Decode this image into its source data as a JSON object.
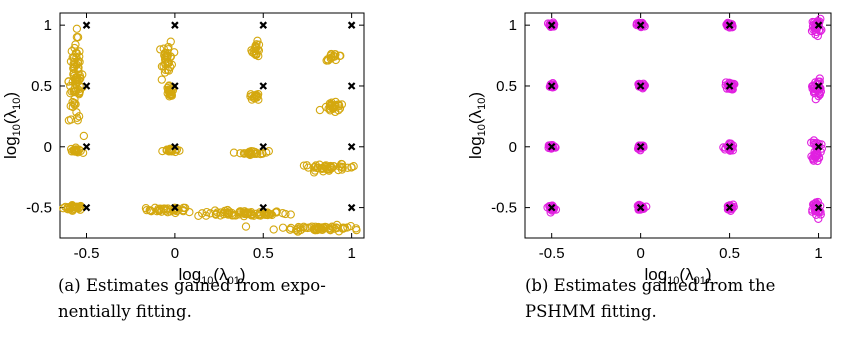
{
  "chart_data": [
    {
      "type": "scatter",
      "panel_caption": [
        "(a) Estimates gained from expo-",
        "nentially fitting."
      ],
      "xlabel": {
        "base": "log",
        "base_sub": "10",
        "arg": "(λ",
        "arg_sub": "01",
        "close": ")"
      },
      "ylabel": {
        "base": "log",
        "base_sub": "10",
        "arg": "(λ",
        "arg_sub": "10",
        "close": ")"
      },
      "xlim": [
        -0.65,
        1.07
      ],
      "ylim": [
        -0.75,
        1.1
      ],
      "xticks": [
        -0.5,
        0,
        0.5,
        1
      ],
      "xtick_labels": [
        "-0.5",
        "0",
        "0.5",
        "1"
      ],
      "yticks": [
        -0.5,
        0,
        0.5,
        1
      ],
      "ytick_labels": [
        "-0.5",
        "0",
        "0.5",
        "1"
      ],
      "grid": false,
      "series": [
        {
          "role": "true-values",
          "marker": "x",
          "color": "#000000",
          "points": [
            [
              -0.5,
              -0.5
            ],
            [
              0,
              -0.5
            ],
            [
              0.5,
              -0.5
            ],
            [
              1,
              -0.5
            ],
            [
              -0.5,
              0
            ],
            [
              0,
              0
            ],
            [
              0.5,
              0
            ],
            [
              1,
              0
            ],
            [
              -0.5,
              0.5
            ],
            [
              0,
              0.5
            ],
            [
              0.5,
              0.5
            ],
            [
              1,
              0.5
            ],
            [
              -0.5,
              1
            ],
            [
              0,
              1
            ],
            [
              0.5,
              1
            ],
            [
              1,
              1
            ]
          ]
        },
        {
          "role": "estimates",
          "marker": "open-circle",
          "color": "#d4a80f",
          "clusters": [
            {
              "cx": -0.57,
              "cy": -0.5,
              "sx": 0.03,
              "sy": 0.01,
              "n": 30
            },
            {
              "cx": -0.04,
              "cy": -0.52,
              "sx": 0.06,
              "sy": 0.012,
              "n": 35
            },
            {
              "cx": 0.38,
              "cy": -0.55,
              "sx": 0.13,
              "sy": 0.012,
              "n": 70
            },
            {
              "cx": 0.82,
              "cy": -0.67,
              "sx": 0.12,
              "sy": 0.012,
              "n": 60
            },
            {
              "cx": -0.56,
              "cy": -0.03,
              "sx": 0.015,
              "sy": 0.01,
              "n": 20
            },
            {
              "cx": -0.03,
              "cy": -0.03,
              "sx": 0.02,
              "sy": 0.008,
              "n": 20
            },
            {
              "cx": 0.45,
              "cy": -0.05,
              "sx": 0.04,
              "sy": 0.008,
              "n": 25
            },
            {
              "cx": 0.87,
              "cy": -0.17,
              "sx": 0.08,
              "sy": 0.012,
              "n": 40
            },
            {
              "cx": -0.56,
              "cy": 0.55,
              "sx": 0.02,
              "sy": 0.18,
              "n": 80
            },
            {
              "cx": -0.03,
              "cy": 0.44,
              "sx": 0.012,
              "sy": 0.03,
              "n": 20
            },
            {
              "cx": 0.45,
              "cy": 0.41,
              "sx": 0.015,
              "sy": 0.015,
              "n": 15
            },
            {
              "cx": 0.9,
              "cy": 0.32,
              "sx": 0.03,
              "sy": 0.02,
              "n": 25
            },
            {
              "cx": -0.04,
              "cy": 0.73,
              "sx": 0.015,
              "sy": 0.07,
              "n": 35
            },
            {
              "cx": 0.46,
              "cy": 0.8,
              "sx": 0.012,
              "sy": 0.03,
              "n": 20
            },
            {
              "cx": 0.9,
              "cy": 0.74,
              "sx": 0.025,
              "sy": 0.015,
              "n": 15
            }
          ]
        }
      ]
    },
    {
      "type": "scatter",
      "panel_caption": [
        "(b) Estimates gained from the",
        "PSHMM fitting."
      ],
      "xlabel": {
        "base": "log",
        "base_sub": "10",
        "arg": "(λ",
        "arg_sub": "01",
        "close": ")"
      },
      "ylabel": {
        "base": "log",
        "base_sub": "10",
        "arg": "(λ",
        "arg_sub": "10",
        "close": ")"
      },
      "xlim": [
        -0.65,
        1.07
      ],
      "ylim": [
        -0.75,
        1.1
      ],
      "xticks": [
        -0.5,
        0,
        0.5,
        1
      ],
      "xtick_labels": [
        "-0.5",
        "0",
        "0.5",
        "1"
      ],
      "yticks": [
        -0.5,
        0,
        0.5,
        1
      ],
      "ytick_labels": [
        "-0.5",
        "0",
        "0.5",
        "1"
      ],
      "grid": false,
      "series": [
        {
          "role": "true-values",
          "marker": "x",
          "color": "#000000",
          "points": [
            [
              -0.5,
              -0.5
            ],
            [
              0,
              -0.5
            ],
            [
              0.5,
              -0.5
            ],
            [
              1,
              -0.5
            ],
            [
              -0.5,
              0
            ],
            [
              0,
              0
            ],
            [
              0.5,
              0
            ],
            [
              1,
              0
            ],
            [
              -0.5,
              0.5
            ],
            [
              0,
              0.5
            ],
            [
              0.5,
              0.5
            ],
            [
              1,
              0.5
            ],
            [
              -0.5,
              1
            ],
            [
              0,
              1
            ],
            [
              0.5,
              1
            ],
            [
              1,
              1
            ]
          ]
        },
        {
          "role": "estimates",
          "marker": "open-circle",
          "color": "#e020e0",
          "clusters": [
            {
              "cx": -0.5,
              "cy": -0.5,
              "sx": 0.01,
              "sy": 0.01,
              "n": 25
            },
            {
              "cx": 0,
              "cy": -0.5,
              "sx": 0.01,
              "sy": 0.01,
              "n": 25
            },
            {
              "cx": 0.5,
              "cy": -0.5,
              "sx": 0.01,
              "sy": 0.012,
              "n": 25
            },
            {
              "cx": 0.99,
              "cy": -0.52,
              "sx": 0.012,
              "sy": 0.04,
              "n": 35
            },
            {
              "cx": -0.5,
              "cy": 0,
              "sx": 0.01,
              "sy": 0.01,
              "n": 25
            },
            {
              "cx": 0,
              "cy": 0,
              "sx": 0.01,
              "sy": 0.01,
              "n": 25
            },
            {
              "cx": 0.5,
              "cy": -0.01,
              "sx": 0.012,
              "sy": 0.02,
              "n": 25
            },
            {
              "cx": 0.99,
              "cy": -0.02,
              "sx": 0.012,
              "sy": 0.05,
              "n": 35
            },
            {
              "cx": -0.5,
              "cy": 0.5,
              "sx": 0.01,
              "sy": 0.01,
              "n": 25
            },
            {
              "cx": 0,
              "cy": 0.5,
              "sx": 0.01,
              "sy": 0.01,
              "n": 25
            },
            {
              "cx": 0.5,
              "cy": 0.5,
              "sx": 0.012,
              "sy": 0.015,
              "n": 25
            },
            {
              "cx": 0.99,
              "cy": 0.48,
              "sx": 0.012,
              "sy": 0.04,
              "n": 35
            },
            {
              "cx": -0.5,
              "cy": 1,
              "sx": 0.01,
              "sy": 0.01,
              "n": 25
            },
            {
              "cx": 0,
              "cy": 1,
              "sx": 0.01,
              "sy": 0.01,
              "n": 25
            },
            {
              "cx": 0.5,
              "cy": 1,
              "sx": 0.012,
              "sy": 0.012,
              "n": 25
            },
            {
              "cx": 0.99,
              "cy": 0.99,
              "sx": 0.012,
              "sy": 0.03,
              "n": 30
            }
          ]
        }
      ]
    }
  ]
}
